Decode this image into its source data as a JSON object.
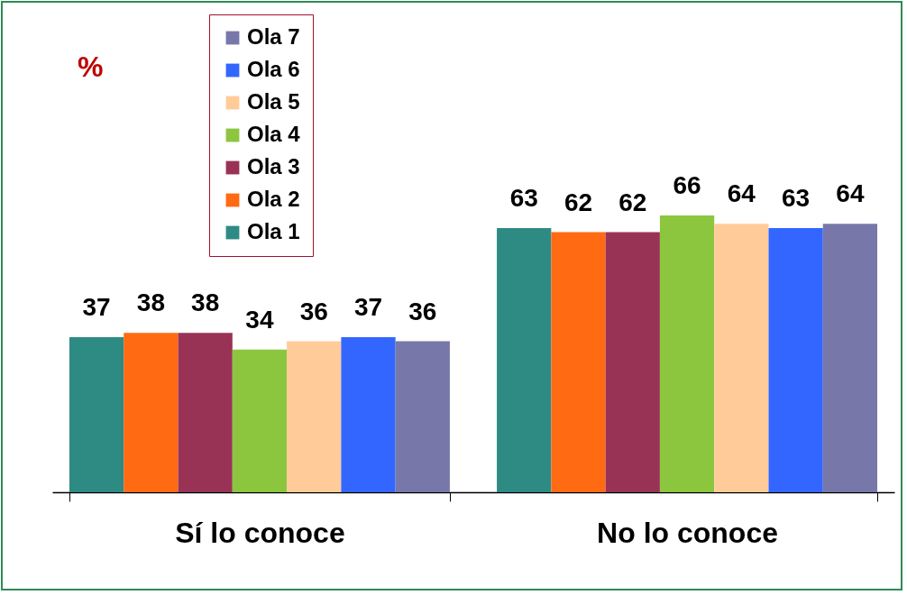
{
  "chart_data": {
    "type": "bar",
    "annotations": [
      "%"
    ],
    "categories": [
      "Sí lo conoce",
      "No lo conoce"
    ],
    "series": [
      {
        "name": "Ola 1",
        "color": "#2e8b84",
        "values": [
          37,
          63
        ]
      },
      {
        "name": "Ola 2",
        "color": "#ff6a13",
        "values": [
          38,
          62
        ]
      },
      {
        "name": "Ola 3",
        "color": "#993355",
        "values": [
          38,
          62
        ]
      },
      {
        "name": "Ola 4",
        "color": "#8cc63f",
        "values": [
          34,
          66
        ]
      },
      {
        "name": "Ola 5",
        "color": "#ffcc99",
        "values": [
          36,
          64
        ]
      },
      {
        "name": "Ola 6",
        "color": "#3366ff",
        "values": [
          37,
          63
        ]
      },
      {
        "name": "Ola 7",
        "color": "#7777aa",
        "values": [
          36,
          64
        ]
      }
    ],
    "tick_labels": "x",
    "data_labels": true,
    "legend": "top left"
  }
}
